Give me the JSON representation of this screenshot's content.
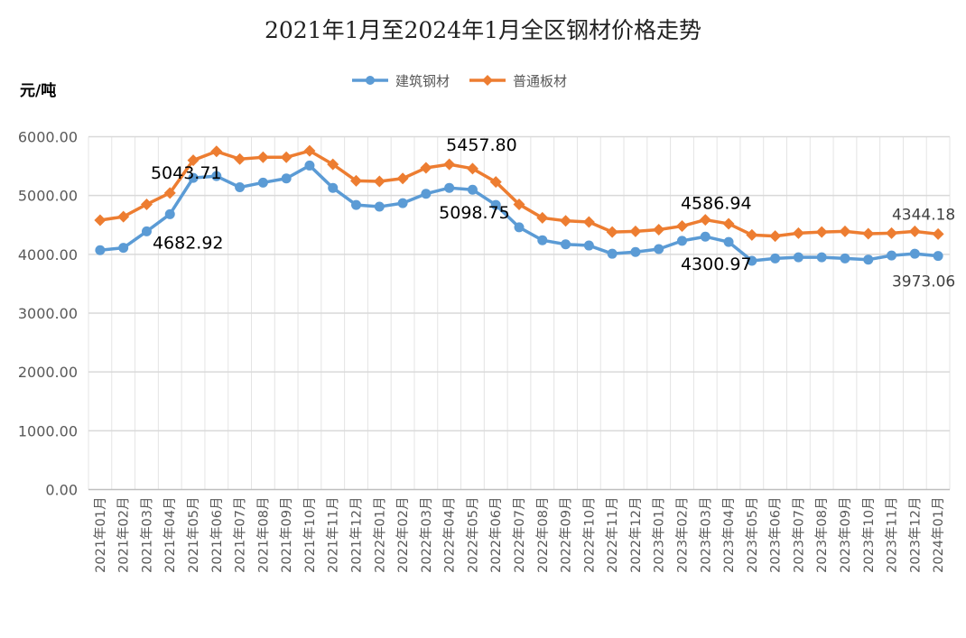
{
  "chart_data": {
    "type": "line",
    "title": "2021年1月至2024年1月全区钢材价格走势",
    "ylabel": "元/吨",
    "xlabel": "",
    "ylim": [
      0,
      6000
    ],
    "yticks": [
      "0.00",
      "1000.00",
      "2000.00",
      "3000.00",
      "4000.00",
      "5000.00",
      "6000.00"
    ],
    "grid": true,
    "legend_position": "top-center",
    "categories": [
      "2021年01月",
      "2021年02月",
      "2021年03月",
      "2021年04月",
      "2021年05月",
      "2021年06月",
      "2021年07月",
      "2021年08月",
      "2021年09月",
      "2021年10月",
      "2021年11月",
      "2021年12月",
      "2022年01月",
      "2022年02月",
      "2022年03月",
      "2022年04月",
      "2022年05月",
      "2022年06月",
      "2022年07月",
      "2022年08月",
      "2022年09月",
      "2022年10月",
      "2022年11月",
      "2022年12月",
      "2023年01月",
      "2023年02月",
      "2023年03月",
      "2023年04月",
      "2023年05月",
      "2023年06月",
      "2023年07月",
      "2023年08月",
      "2023年09月",
      "2023年10月",
      "2023年11月",
      "2023年12月",
      "2024年01月"
    ],
    "series": [
      {
        "name": "建筑钢材",
        "color": "#5B9BD5",
        "marker": "circle",
        "values": [
          4070,
          4110,
          4390,
          4682.92,
          5300,
          5330,
          5140,
          5220,
          5290,
          5510,
          5130,
          4840,
          4810,
          4870,
          5030,
          5130,
          5098.75,
          4840,
          4460,
          4240,
          4170,
          4150,
          4010,
          4040,
          4090,
          4230,
          4300.97,
          4210,
          3890,
          3930,
          3950,
          3950,
          3930,
          3910,
          3980,
          4010,
          3973.06
        ]
      },
      {
        "name": "普通板材",
        "color": "#ED7D31",
        "marker": "diamond",
        "values": [
          4580,
          4640,
          4850,
          5043.71,
          5600,
          5750,
          5620,
          5650,
          5650,
          5760,
          5530,
          5250,
          5240,
          5290,
          5470,
          5530,
          5457.8,
          5230,
          4850,
          4620,
          4570,
          4550,
          4380,
          4390,
          4420,
          4480,
          4586.94,
          4520,
          4330,
          4310,
          4360,
          4380,
          4390,
          4350,
          4360,
          4390,
          4344.18
        ]
      }
    ],
    "data_labels": [
      {
        "series": 0,
        "index": 3,
        "text": "4682.92"
      },
      {
        "series": 1,
        "index": 3,
        "text": "5043.71"
      },
      {
        "series": 0,
        "index": 16,
        "text": "5098.75"
      },
      {
        "series": 1,
        "index": 16,
        "text": "5457.80"
      },
      {
        "series": 0,
        "index": 26,
        "text": "4300.97"
      },
      {
        "series": 1,
        "index": 26,
        "text": "4586.94"
      },
      {
        "series": 0,
        "index": 36,
        "text": "3973.06"
      },
      {
        "series": 1,
        "index": 36,
        "text": "4344.18"
      }
    ]
  }
}
